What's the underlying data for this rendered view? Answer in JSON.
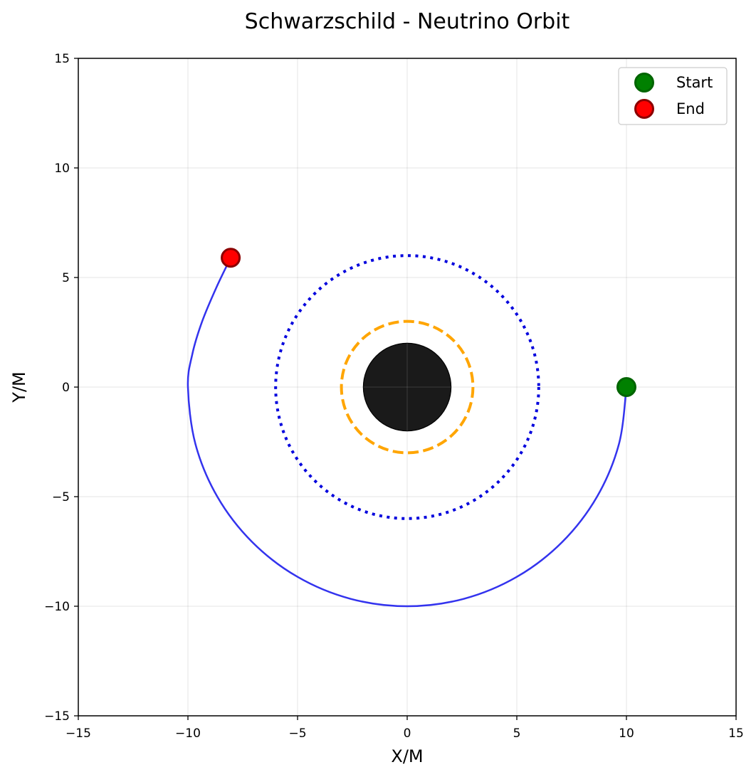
{
  "chart_data": {
    "type": "line",
    "title": "Schwarzschild - Neutrino Orbit",
    "xlabel": "X/M",
    "ylabel": "Y/M",
    "xlim": [
      -15,
      15
    ],
    "ylim": [
      -15,
      15
    ],
    "xticks": [
      -15,
      -10,
      -5,
      0,
      5,
      10,
      15
    ],
    "yticks": [
      -15,
      -10,
      -5,
      0,
      5,
      10,
      15
    ],
    "xtick_labels": [
      "−15",
      "−10",
      "−5",
      "0",
      "5",
      "10",
      "15"
    ],
    "ytick_labels": [
      "−15",
      "−10",
      "−5",
      "0",
      "5",
      "10",
      "15"
    ],
    "grid": true,
    "legend_position": "top-right",
    "orbit": {
      "color": "#3333ee",
      "points": [
        [
          10.0,
          0.0
        ],
        [
          9.66,
          -2.59
        ],
        [
          8.66,
          -5.0
        ],
        [
          7.07,
          -7.07
        ],
        [
          5.0,
          -8.66
        ],
        [
          2.59,
          -9.66
        ],
        [
          0.0,
          -10.0
        ],
        [
          -2.59,
          -9.66
        ],
        [
          -5.0,
          -8.66
        ],
        [
          -7.07,
          -7.07
        ],
        [
          -8.66,
          -5.0
        ],
        [
          -9.66,
          -2.59
        ],
        [
          -10.0,
          0.0
        ],
        [
          -9.8,
          1.5
        ],
        [
          -9.35,
          3.0
        ],
        [
          -8.7,
          4.55
        ],
        [
          -8.05,
          5.9
        ]
      ]
    },
    "black_hole": {
      "radius": 2,
      "color": "#1a1a1a"
    },
    "photon_sphere": {
      "radius": 3,
      "color": "#ffa500",
      "style": "dashed"
    },
    "isco": {
      "radius": 6,
      "color": "#0000dd",
      "style": "dotted"
    },
    "markers": [
      {
        "name": "Start",
        "x": 10.0,
        "y": 0.0,
        "fill": "#008000",
        "edge": "#006400"
      },
      {
        "name": "End",
        "x": -8.05,
        "y": 5.9,
        "fill": "#ff0000",
        "edge": "#8b0000"
      }
    ]
  }
}
